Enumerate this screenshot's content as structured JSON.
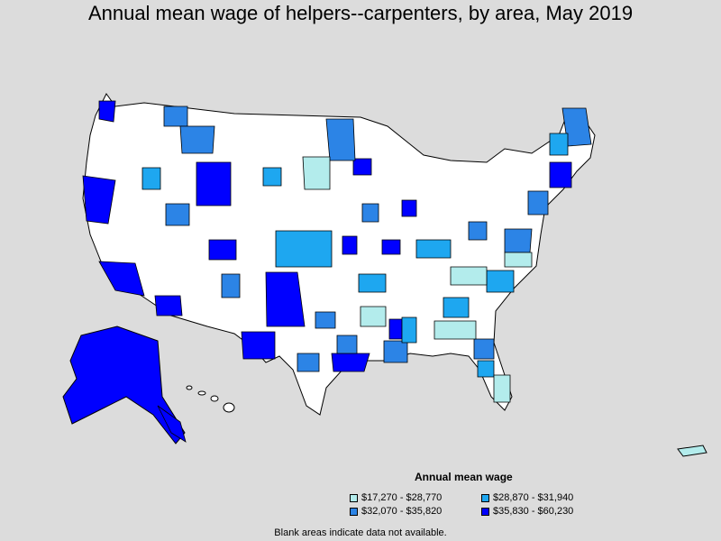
{
  "title": "Annual mean wage of helpers--carpenters, by area, May 2019",
  "legend": {
    "title": "Annual mean wage",
    "items": [
      {
        "label": "$17,270 - $28,770",
        "color": "#b3ecec"
      },
      {
        "label": "$28,870 - $31,940",
        "color": "#1ea7f0"
      },
      {
        "label": "$32,070 - $35,820",
        "color": "#2c84e6"
      },
      {
        "label": "$35,830 - $60,230",
        "color": "#0000ff"
      }
    ]
  },
  "footnote": "Blank areas indicate data not available.",
  "colors": {
    "background": "#dcdcdc",
    "blank": "#ffffff",
    "border": "#000000"
  }
}
